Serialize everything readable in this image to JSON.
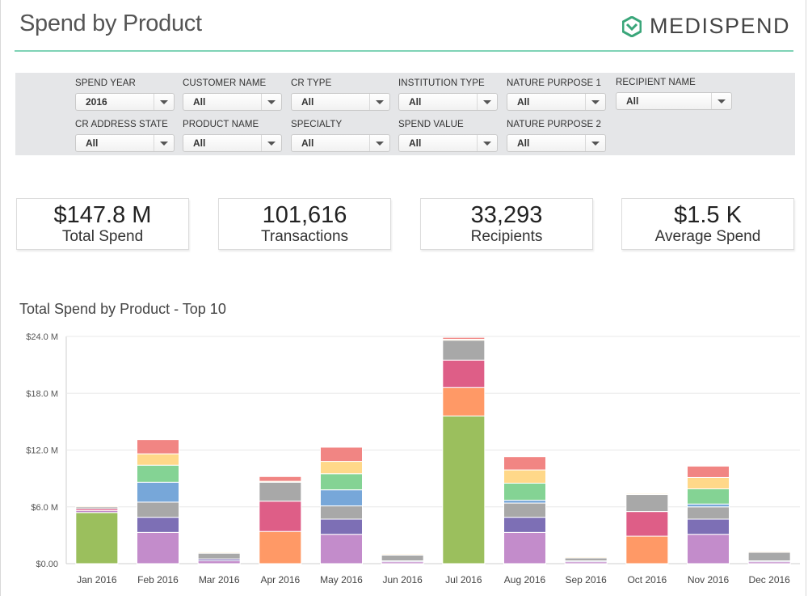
{
  "header": {
    "title": "Spend by Product",
    "brand": "MEDISPEND",
    "brand_icon": "medispend-logo-icon",
    "accent_color": "#7fd3b6",
    "brand_color": "#3aa67a"
  },
  "filters": [
    {
      "label": "SPEND YEAR",
      "value": "2016"
    },
    {
      "label": "CUSTOMER NAME",
      "value": "All"
    },
    {
      "label": "CR TYPE",
      "value": "All"
    },
    {
      "label": "INSTITUTION TYPE",
      "value": "All"
    },
    {
      "label": "NATURE PURPOSE 1",
      "value": "All"
    },
    {
      "label": "RECIPIENT NAME",
      "value": "All"
    },
    {
      "label": "CR ADDRESS STATE",
      "value": "All"
    },
    {
      "label": "PRODUCT NAME",
      "value": "All"
    },
    {
      "label": "SPECIALTY",
      "value": "All"
    },
    {
      "label": "SPEND VALUE",
      "value": "All"
    },
    {
      "label": "NATURE PURPOSE 2",
      "value": "All"
    }
  ],
  "kpis": [
    {
      "value": "$147.8 M",
      "label": "Total Spend"
    },
    {
      "value": "101,616",
      "label": "Transactions"
    },
    {
      "value": "33,293",
      "label": "Recipients"
    },
    {
      "value": "$1.5 K",
      "label": "Average Spend"
    }
  ],
  "chart_data": {
    "type": "bar",
    "stacked": true,
    "title": "Total Spend by Product - Top 10",
    "xlabel": "",
    "ylabel": "",
    "ylim": [
      0,
      24
    ],
    "yticks": [
      0,
      6,
      12,
      18,
      24
    ],
    "ytick_labels": [
      "$0.00",
      "$6.0 M",
      "$12.0 M",
      "$18.0 M",
      "$24.0 M"
    ],
    "grid": true,
    "legend": "none",
    "categories": [
      "Jan 2016",
      "Feb 2016",
      "Mar 2016",
      "Apr 2016",
      "May 2016",
      "Jun 2016",
      "Jul 2016",
      "Aug 2016",
      "Sep 2016",
      "Oct 2016",
      "Nov 2016",
      "Dec 2016"
    ],
    "series": [
      {
        "color": "#9bbf5d",
        "values": [
          5.4,
          0,
          0,
          0,
          0,
          0,
          15.6,
          0,
          0,
          0,
          0,
          0
        ]
      },
      {
        "color": "#c38ccb",
        "values": [
          0.2,
          3.3,
          0.3,
          0,
          3.1,
          0.2,
          0,
          3.3,
          0.2,
          0,
          3.1,
          0.2
        ]
      },
      {
        "color": "#7d6fb5",
        "values": [
          0,
          1.6,
          0.2,
          0,
          1.6,
          0.1,
          0,
          1.6,
          0.1,
          0,
          1.6,
          0.1
        ]
      },
      {
        "color": "#ff9966",
        "values": [
          0,
          0,
          0,
          3.4,
          0,
          0,
          3.0,
          0,
          0,
          2.9,
          0,
          0
        ]
      },
      {
        "color": "#de5e87",
        "values": [
          0.2,
          0,
          0,
          3.2,
          0,
          0,
          2.9,
          0,
          0,
          2.6,
          0,
          0
        ]
      },
      {
        "color": "#a8a8a8",
        "values": [
          0.2,
          1.6,
          0.6,
          2.0,
          1.4,
          0.6,
          2.1,
          1.5,
          0.3,
          1.8,
          1.3,
          0.9
        ]
      },
      {
        "color": "#77a7d9",
        "values": [
          0,
          2.1,
          0,
          0,
          1.7,
          0,
          0,
          0.3,
          0,
          0,
          0.3,
          0
        ]
      },
      {
        "color": "#84d394",
        "values": [
          0,
          1.8,
          0,
          0,
          1.7,
          0,
          0,
          1.8,
          0,
          0,
          1.6,
          0
        ]
      },
      {
        "color": "#ffd889",
        "values": [
          0.1,
          1.2,
          0.1,
          0.1,
          1.3,
          0.1,
          0.1,
          1.4,
          0.1,
          0.1,
          1.2,
          0.1
        ]
      },
      {
        "color": "#f18583",
        "values": [
          0,
          1.5,
          0,
          0.5,
          1.5,
          0,
          0.2,
          1.4,
          0,
          0,
          1.2,
          0
        ]
      }
    ]
  }
}
